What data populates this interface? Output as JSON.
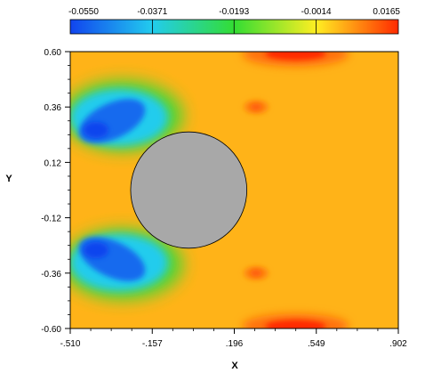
{
  "chart_data": {
    "type": "heatmap",
    "title": "",
    "xlabel": "X",
    "ylabel": "Y",
    "xlim": [
      -0.51,
      0.902
    ],
    "ylim": [
      -0.6,
      0.6
    ],
    "x_ticks": [
      -0.51,
      -0.157,
      0.196,
      0.549,
      0.902
    ],
    "x_tick_labels": [
      "-.510",
      "-.157",
      ".196",
      ".549",
      ".902"
    ],
    "y_ticks": [
      -0.6,
      -0.36,
      -0.12,
      0.12,
      0.36,
      0.6
    ],
    "y_tick_labels": [
      "-0.60",
      "-0.36",
      "-0.12",
      "0.12",
      "0.36",
      "0.60"
    ],
    "colorbar": {
      "min": -0.055,
      "max": 0.0165,
      "ticks": [
        -0.055,
        -0.0371,
        -0.0193,
        -0.0014,
        0.0165
      ],
      "tick_labels": [
        "-0.0550",
        "-0.0371",
        "-0.0193",
        "-0.0014",
        "0.0165"
      ],
      "colors": [
        "#1144ee",
        "#22ccee",
        "#33dd33",
        "#ffee22",
        "#ff2a00"
      ]
    },
    "background_value": 0.004,
    "obstacle": {
      "shape": "circle",
      "center": [
        0.0,
        0.0
      ],
      "radius": 0.25,
      "color": "#a8a8a8"
    },
    "features": [
      {
        "kind": "crescent",
        "x": -0.33,
        "y": 0.33,
        "value": -0.05,
        "mirror": false
      },
      {
        "kind": "crescent",
        "x": -0.33,
        "y": -0.33,
        "value": -0.05,
        "mirror": true
      },
      {
        "kind": "hot-spot",
        "x": 0.29,
        "y": 0.36,
        "value": 0.012
      },
      {
        "kind": "hot-spot",
        "x": 0.29,
        "y": -0.36,
        "value": 0.012
      },
      {
        "kind": "edge-band",
        "x": 0.46,
        "y": 0.59,
        "value": 0.0165
      },
      {
        "kind": "edge-band",
        "x": 0.46,
        "y": -0.59,
        "value": 0.0165
      }
    ]
  }
}
